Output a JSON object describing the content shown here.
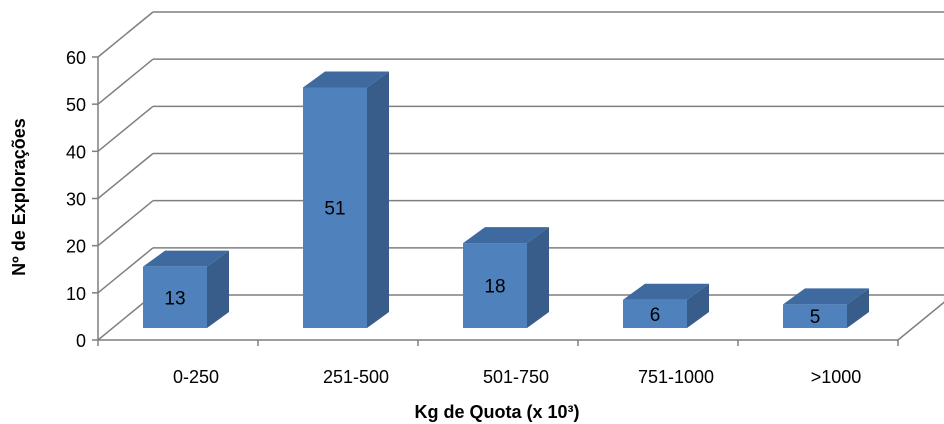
{
  "chart_data": {
    "type": "bar",
    "categories": [
      "0-250",
      "251-500",
      "501-750",
      "751-1000",
      ">1000"
    ],
    "values": [
      13,
      51,
      18,
      6,
      5
    ],
    "data_labels": [
      "13",
      "51",
      "18",
      "6",
      "5"
    ],
    "xlabel": "Kg de Quota (x 10³)",
    "ylabel": "Nº de Explorações",
    "ylim": [
      0,
      60
    ],
    "yticks": [
      "0",
      "10",
      "20",
      "30",
      "40",
      "50",
      "60"
    ],
    "grid": true,
    "legend": "none",
    "bar_color": "#4f81bd",
    "bar_side_color": "#385d8a",
    "bar_top_color": "#3e6aa0",
    "gridline_color": "#7f7f7f",
    "style": "3d-column"
  }
}
